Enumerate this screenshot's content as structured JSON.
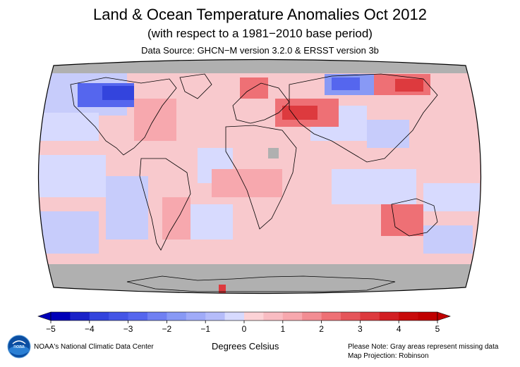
{
  "titles": {
    "main": "Land & Ocean Temperature Anomalies Oct 2012",
    "subtitle": "(with respect to a 1981−2010 base period)",
    "source": "Data Source: GHCN−M version 3.2.0 & ERSST version 3b"
  },
  "legend": {
    "ticks": [
      "−5",
      "−4",
      "−3",
      "−2",
      "−1",
      "0",
      "1",
      "2",
      "3",
      "4",
      "5"
    ],
    "unit": "Degrees Celsius",
    "colors": [
      "#0000b8",
      "#3344dd",
      "#5566ee",
      "#8899f5",
      "#b5bcfa",
      "#d7dafe",
      "#fcd2d6",
      "#f7a8ae",
      "#ee7075",
      "#dd3a3e",
      "#c00000"
    ]
  },
  "map": {
    "projection": "Robinson",
    "missing_color": "#b0b0b0",
    "land_outline_color": "#000000"
  },
  "footer": {
    "org": "NOAA's National Climatic Data Center",
    "note": "Please Note: Gray areas represent missing data",
    "projection_note": "Map Projection: Robinson"
  },
  "logo": {
    "text": "noaa"
  }
}
